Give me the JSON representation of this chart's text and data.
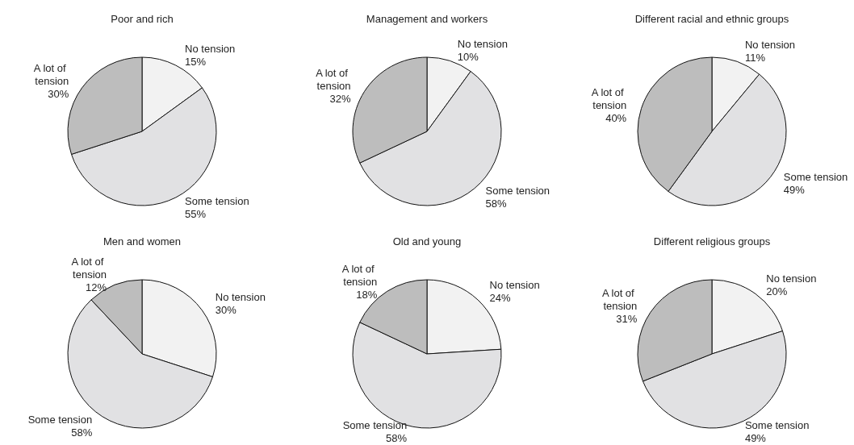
{
  "chart_data": [
    {
      "type": "pie",
      "title": "Poor and rich",
      "categories": [
        "No tension",
        "Some tension",
        "A lot of tension"
      ],
      "values": [
        15,
        55,
        30
      ],
      "value_labels": [
        "15%",
        "55%",
        "30%"
      ],
      "colors": [
        "#f2f2f2",
        "#e1e1e3",
        "#bdbdbd"
      ]
    },
    {
      "type": "pie",
      "title": "Management and workers",
      "categories": [
        "No tension",
        "Some tension",
        "A lot of tension"
      ],
      "values": [
        10,
        58,
        32
      ],
      "value_labels": [
        "10%",
        "58%",
        "32%"
      ],
      "colors": [
        "#f2f2f2",
        "#e1e1e3",
        "#bdbdbd"
      ]
    },
    {
      "type": "pie",
      "title": "Different racial and ethnic groups",
      "categories": [
        "No tension",
        "Some tension",
        "A lot of tension"
      ],
      "values": [
        11,
        49,
        40
      ],
      "value_labels": [
        "11%",
        "49%",
        "40%"
      ],
      "colors": [
        "#f2f2f2",
        "#e1e1e3",
        "#bdbdbd"
      ]
    },
    {
      "type": "pie",
      "title": "Men and women",
      "categories": [
        "No tension",
        "Some tension",
        "A lot of tension"
      ],
      "values": [
        30,
        58,
        12
      ],
      "value_labels": [
        "30%",
        "58%",
        "12%"
      ],
      "colors": [
        "#f2f2f2",
        "#e1e1e3",
        "#bdbdbd"
      ]
    },
    {
      "type": "pie",
      "title": "Old and young",
      "categories": [
        "No tension",
        "Some tension",
        "A lot of tension"
      ],
      "values": [
        24,
        58,
        18
      ],
      "value_labels": [
        "24%",
        "58%",
        "18%"
      ],
      "colors": [
        "#f2f2f2",
        "#e1e1e3",
        "#bdbdbd"
      ]
    },
    {
      "type": "pie",
      "title": "Different religious groups",
      "categories": [
        "No tension",
        "Some tension",
        "A lot of tension"
      ],
      "values": [
        20,
        49,
        31
      ],
      "value_labels": [
        "20%",
        "49%",
        "31%"
      ],
      "colors": [
        "#f2f2f2",
        "#e1e1e3",
        "#bdbdbd"
      ]
    }
  ]
}
